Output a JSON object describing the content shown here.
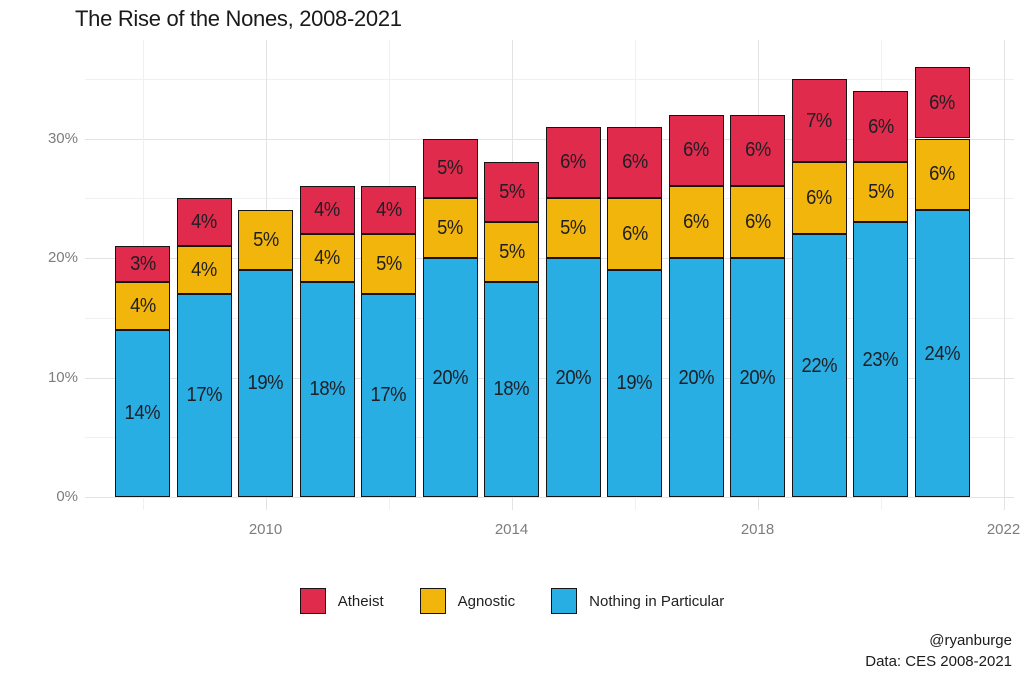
{
  "title": "The Rise of the Nones, 2008-2021",
  "caption": {
    "handle": "@ryanburge",
    "source": "Data: CES 2008-2021"
  },
  "legend": {
    "position": "bottom",
    "items": [
      {
        "label": "Atheist",
        "color": "#E02B4C"
      },
      {
        "label": "Agnostic",
        "color": "#F2B50C"
      },
      {
        "label": "Nothing in Particular",
        "color": "#29AEE4"
      }
    ]
  },
  "axes": {
    "y_ticks": [
      {
        "value": 0,
        "label": "0%"
      },
      {
        "value": 10,
        "label": "10%"
      },
      {
        "value": 20,
        "label": "20%"
      },
      {
        "value": 30,
        "label": "30%"
      }
    ],
    "y_minor": [
      5,
      15,
      25,
      35
    ],
    "x_ticks": [
      {
        "value": 2010,
        "label": "2010"
      },
      {
        "value": 2014,
        "label": "2014"
      },
      {
        "value": 2018,
        "label": "2018"
      },
      {
        "value": 2022,
        "label": "2022"
      }
    ],
    "x_minor": [
      2008,
      2012,
      2016,
      2020
    ]
  },
  "chart_data": {
    "type": "bar",
    "stacked": true,
    "title": "The Rise of the Nones, 2008-2021",
    "xlabel": "",
    "ylabel": "",
    "categories": [
      2008,
      2009,
      2010,
      2011,
      2012,
      2013,
      2014,
      2015,
      2016,
      2017,
      2018,
      2019,
      2020,
      2021
    ],
    "series": [
      {
        "name": "Nothing in Particular",
        "color": "#29AEE4",
        "values": [
          14,
          17,
          19,
          18,
          17,
          20,
          18,
          20,
          19,
          20,
          20,
          22,
          23,
          24
        ],
        "labels": [
          "14%",
          "17%",
          "19%",
          "18%",
          "17%",
          "20%",
          "18%",
          "20%",
          "19%",
          "20%",
          "20%",
          "22%",
          "23%",
          "24%"
        ]
      },
      {
        "name": "Agnostic",
        "color": "#F2B50C",
        "values": [
          4,
          4,
          5,
          4,
          5,
          5,
          5,
          5,
          6,
          6,
          6,
          6,
          5,
          6
        ],
        "labels": [
          "4%",
          "4%",
          "5%",
          "4%",
          "5%",
          "5%",
          "5%",
          "5%",
          "6%",
          "6%",
          "6%",
          "6%",
          "5%",
          "6%"
        ]
      },
      {
        "name": "Atheist",
        "color": "#E02B4C",
        "values": [
          3,
          4,
          0,
          4,
          4,
          5,
          5,
          6,
          6,
          6,
          6,
          7,
          6,
          6
        ],
        "labels": [
          "3%",
          "4%",
          "",
          "4%",
          "4%",
          "5%",
          "5%",
          "6%",
          "6%",
          "6%",
          "6%",
          "7%",
          "6%",
          "6%"
        ]
      }
    ],
    "stack_order_bottom_to_top": [
      "Nothing in Particular",
      "Agnostic",
      "Atheist"
    ],
    "ylim": [
      0,
      38
    ],
    "xlim": [
      2007.5,
      2022.3
    ],
    "grid": true,
    "legend_position": "bottom",
    "data_labels": "inside segments, hidden when value is 0"
  }
}
